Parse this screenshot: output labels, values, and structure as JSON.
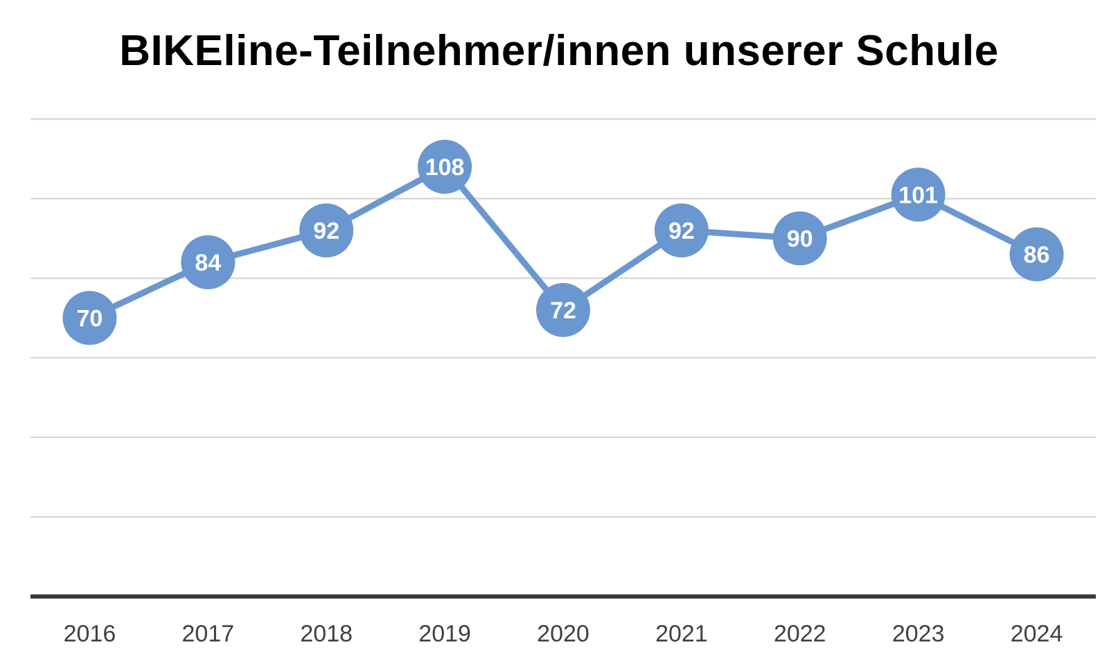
{
  "chart_data": {
    "type": "line",
    "title": "BIKEline-Teilnehmer/innen unserer Schule",
    "xlabel": "",
    "ylabel": "",
    "categories": [
      "2016",
      "2017",
      "2018",
      "2019",
      "2020",
      "2021",
      "2022",
      "2023",
      "2024"
    ],
    "series": [
      {
        "values": [
          70,
          84,
          92,
          108,
          72,
          92,
          90,
          101,
          86
        ]
      }
    ],
    "ylim": [
      0,
      120
    ],
    "y_gridlines": [
      0,
      20,
      40,
      60,
      80,
      100,
      120
    ],
    "y_tick_labels_shown": false,
    "grid": true,
    "legend": "none",
    "data_labels": true,
    "colors": {
      "series": "#6a97d0",
      "grid": "#d9d9d9",
      "axis": "#3a3a3a",
      "tick_text": "#404040",
      "title": "#000000",
      "data_label_text": "#ffffff"
    }
  }
}
